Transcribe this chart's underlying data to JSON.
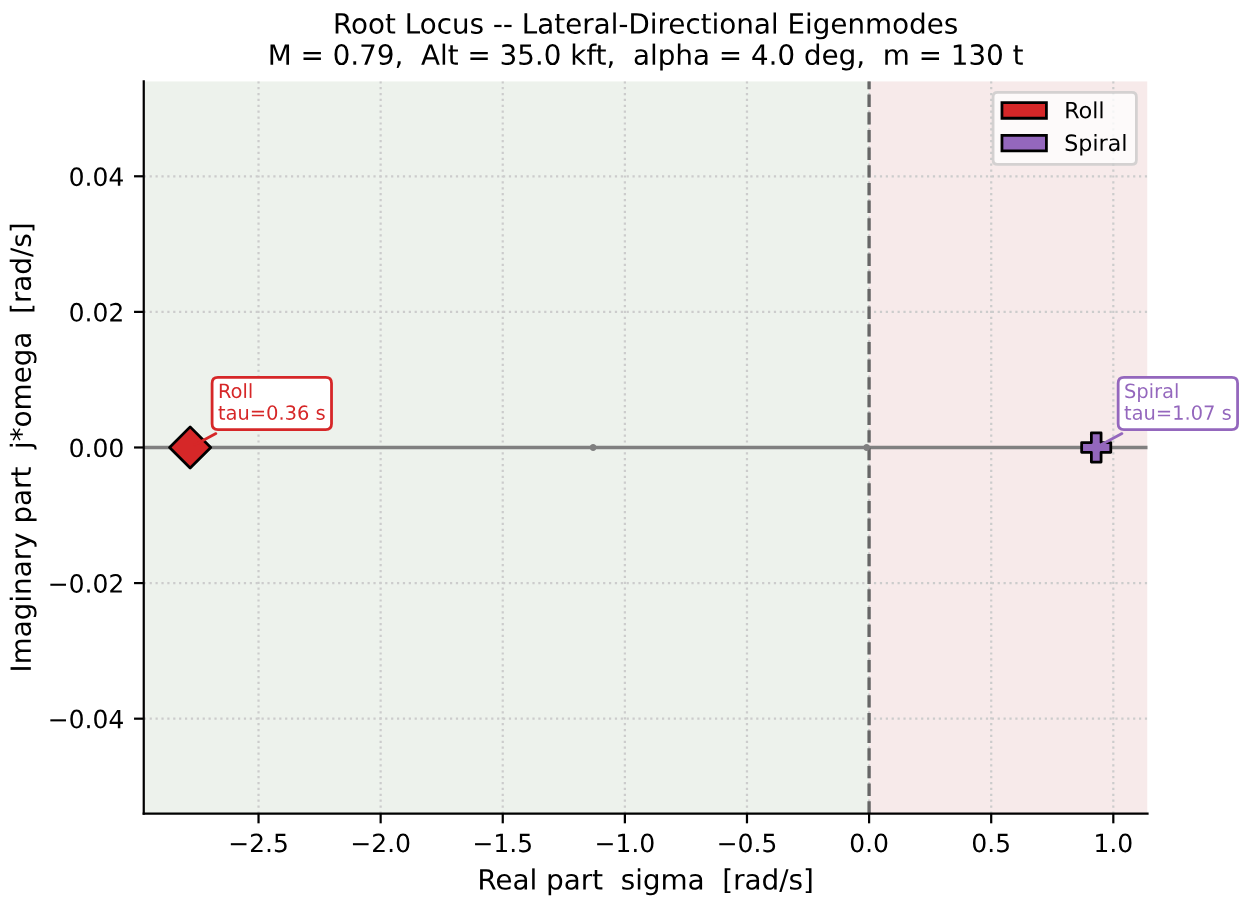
{
  "chart_data": {
    "type": "scatter",
    "title": "Root Locus -- Lateral-Directional Eigenmodes\nM = 0.79,  Alt = 35.0 kft,  alpha = 4.0 deg,  m = 130 t",
    "xlabel": "Real part  sigma  [rad/s]",
    "ylabel": "Imaginary part  j*omega  [rad/s]",
    "xlim": [
      -2.97,
      1.14
    ],
    "ylim": [
      -0.054,
      0.054
    ],
    "xticks": [
      {
        "value": -2.5,
        "label": "−2.5"
      },
      {
        "value": -2.0,
        "label": "−2.0"
      },
      {
        "value": -1.5,
        "label": "−1.5"
      },
      {
        "value": -1.0,
        "label": "−1.0"
      },
      {
        "value": -0.5,
        "label": "−0.5"
      },
      {
        "value": 0,
        "label": "0.0"
      },
      0.5,
      {
        "value": 1,
        "label": "1.0"
      }
    ],
    "yticks": [
      {
        "value": -0.04,
        "label": "−0.04"
      },
      {
        "value": -0.02,
        "label": "−0.02"
      },
      {
        "value": 0,
        "label": "0.00"
      },
      0.02,
      0.04
    ],
    "grid": true,
    "legend": "top right",
    "series": [
      {
        "color": "#808080",
        "x": [
          -1.13,
          -0.01
        ],
        "values": [
          0,
          0
        ],
        "marker": "circle"
      },
      {
        "name": "Roll",
        "color": "#d62728",
        "x": [
          -2.78
        ],
        "values": [
          0
        ],
        "marker": "diamond"
      },
      {
        "name": "Spiral",
        "color": "#9467bd",
        "x": [
          0.93
        ],
        "values": [
          0
        ],
        "marker": "cross"
      }
    ],
    "annotations": [
      {
        "text": "Roll\ntau=0.36 s",
        "x": -2.78,
        "y": 0
      },
      {
        "text": "Spiral\ntau=1.07 s",
        "x": 0.93,
        "y": 0
      }
    ],
    "ref_lines": [
      {
        "axis": "y",
        "value": 0,
        "color": "#808080",
        "line_style": "solid"
      },
      {
        "axis": "x",
        "value": 0,
        "color": "#666666",
        "line_style": "dashed"
      }
    ],
    "bands": [
      {
        "axis": "x",
        "from": -2.97,
        "to": 0,
        "color": "#edf2ec"
      },
      {
        "axis": "x",
        "from": 0,
        "to": 1.14,
        "color": "#f7eaea"
      }
    ]
  }
}
